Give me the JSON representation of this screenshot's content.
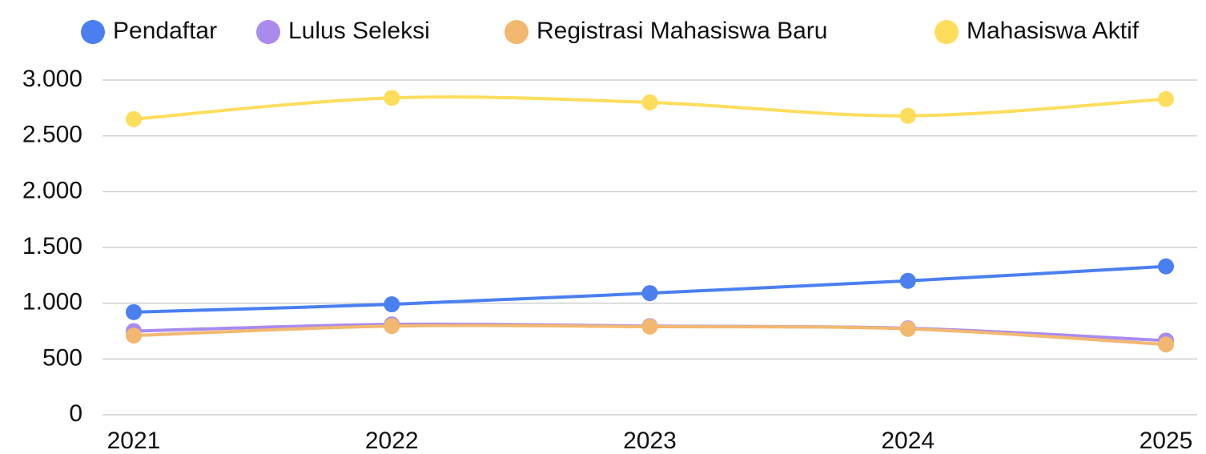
{
  "chart_data": {
    "type": "line",
    "categories": [
      "2021",
      "2022",
      "2023",
      "2024",
      "2025"
    ],
    "series": [
      {
        "name": "Pendaftar",
        "color": "#4a7fef",
        "values": [
          920,
          990,
          1090,
          1200,
          1330
        ]
      },
      {
        "name": "Lulus Seleksi",
        "color": "#a98bf0",
        "values": [
          750,
          810,
          795,
          775,
          665
        ]
      },
      {
        "name": "Registrasi Mahasiswa Baru",
        "color": "#f3b870",
        "values": [
          710,
          795,
          790,
          770,
          630
        ]
      },
      {
        "name": "Mahasiswa Aktif",
        "color": "#fddd5c",
        "values": [
          2650,
          2840,
          2800,
          2680,
          2830
        ]
      }
    ],
    "ylim": [
      0,
      3000
    ],
    "yticks": [
      0,
      500,
      {
        "value": 1000,
        "label": "1.000"
      },
      {
        "value": 1500,
        "label": "1.500"
      },
      {
        "value": 2000,
        "label": "2.000"
      },
      {
        "value": 2500,
        "label": "2.500"
      },
      {
        "value": 3000,
        "label": "3.000"
      }
    ],
    "grid": true,
    "smooth": true,
    "legend": "top"
  }
}
